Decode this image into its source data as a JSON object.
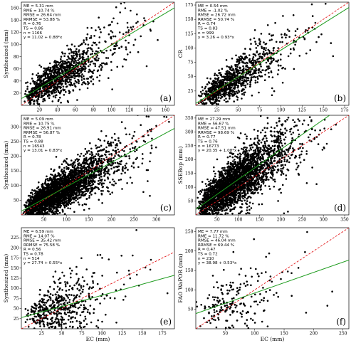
{
  "figure": {
    "background": "#ffffff",
    "point_color": "#000000",
    "oneone_color": "#e41a1c",
    "fit_color": "#1a9a1a"
  },
  "chart_data": [
    {
      "panel": "(a)",
      "type": "scatter",
      "xlabel": "",
      "ylabel": "Synthesized (mm)",
      "xlim": [
        0,
        170
      ],
      "ylim": [
        0,
        170
      ],
      "xticks": [
        20,
        40,
        60,
        80,
        100,
        120,
        140,
        160
      ],
      "yticks": [
        20,
        40,
        60,
        80,
        100,
        120,
        140,
        160
      ],
      "fit": {
        "slope": 0.88,
        "intercept": 11.02
      },
      "n_points": 1166,
      "spread": 0.3,
      "stats": [
        "ME = 5.31 mm",
        "RME = 10.74 %",
        "RMSE = 26.64 mm",
        "RRMSE = 53.88 %",
        "R = 0.76",
        "TS = 0.86",
        "n = 1166",
        "y = 11.02 + 0.88*x"
      ]
    },
    {
      "panel": "(b)",
      "type": "scatter",
      "xlabel": "",
      "ylabel": "CR",
      "xlim": [
        0,
        180
      ],
      "ylim": [
        0,
        180
      ],
      "xticks": [
        25,
        50,
        75,
        100,
        125,
        150,
        175
      ],
      "yticks": [
        25,
        50,
        75,
        100,
        125,
        150,
        175
      ],
      "fit": {
        "slope": 0.93,
        "intercept": 3.26
      },
      "n_points": 999,
      "spread": 0.28,
      "stats": [
        "ME = 0.54 mm",
        "RME = -1.02 %",
        "RMSE = 26.72 mm",
        "RRMSE = 50.74 %",
        "R = 0.74",
        "TS = 0.83",
        "n = 999",
        "y = 3.26 + 0.93*x"
      ]
    },
    {
      "panel": "(c)",
      "type": "scatter",
      "xlabel": "",
      "ylabel": "Synthesized (mm)",
      "xlim": [
        0,
        340
      ],
      "ylim": [
        0,
        340
      ],
      "xticks": [
        50,
        100,
        150,
        200,
        250,
        300
      ],
      "yticks": [
        50,
        100,
        150,
        200,
        250,
        300
      ],
      "fit": {
        "slope": 0.83,
        "intercept": 13.01
      },
      "n_points": 3000,
      "spread": 0.28,
      "stats": [
        "ME = 5.09 mm",
        "RME = 10.75 %",
        "RMSE = 26.91 mm",
        "RRMSE = 56.87 %",
        "R = 0.78",
        "TS = 0.88",
        "n = 16543",
        "y = 13.01 + 0.83*x"
      ]
    },
    {
      "panel": "(d)",
      "type": "scatter",
      "xlabel": "",
      "ylabel": "SSEBop (mm)",
      "xlim": [
        0,
        360
      ],
      "ylim": [
        0,
        360
      ],
      "xticks": [
        50,
        100,
        150,
        200,
        250,
        300,
        350
      ],
      "yticks": [
        50,
        100,
        150,
        200,
        250,
        300,
        350
      ],
      "fit": {
        "slope": 1.08,
        "intercept": 20.35
      },
      "n_points": 3000,
      "spread": 0.38,
      "stats": [
        "ME = 27.29 mm",
        "RME = 56.67 %",
        "RMSE = 47.51 mm",
        "RRMSE = 98.69 %",
        "R = 0.77",
        "TS = 0.76",
        "n = 16773",
        "y = 20.35 + 1.08*x"
      ]
    },
    {
      "panel": "(e)",
      "type": "scatter",
      "xlabel": "EC (mm)",
      "ylabel": "Synthesized (mm)",
      "xlim": [
        0,
        190
      ],
      "ylim": [
        0,
        250
      ],
      "xticks": [
        25,
        50,
        75,
        100,
        125,
        150,
        175
      ],
      "yticks": [
        25,
        50,
        75,
        100,
        125,
        150,
        175,
        200,
        225
      ],
      "fit": {
        "slope": 0.55,
        "intercept": 27.74
      },
      "n_points": 514,
      "spread": 0.5,
      "stats": [
        "ME = 6.59 mm",
        "RME = 14.07 %",
        "RMSE = 35.42 mm",
        "RRMSE = 75.58 %",
        "R = 0.56",
        "TS = 0.78",
        "n = 514",
        "y = 27.74 + 0.55*x"
      ]
    },
    {
      "panel": "(f)",
      "type": "scatter",
      "xlabel": "EC (mm)",
      "ylabel": "FAO WaPOR (mm)",
      "xlim": [
        0,
        260
      ],
      "ylim": [
        0,
        260
      ],
      "xticks": [
        50,
        100,
        150,
        200,
        250
      ],
      "yticks": [
        50,
        100,
        150,
        200,
        250
      ],
      "fit": {
        "slope": 0.53,
        "intercept": 38.98
      },
      "n_points": 210,
      "spread": 0.45,
      "stats": [
        "ME = 7.77 mm",
        "RME = 11.72 %",
        "RMSE = 46.04 mm",
        "RRMSE = 69.44 %",
        "R = 0.47",
        "TS = 0.72",
        "n = 210",
        "y = 38.98 + 0.53*x"
      ]
    }
  ]
}
